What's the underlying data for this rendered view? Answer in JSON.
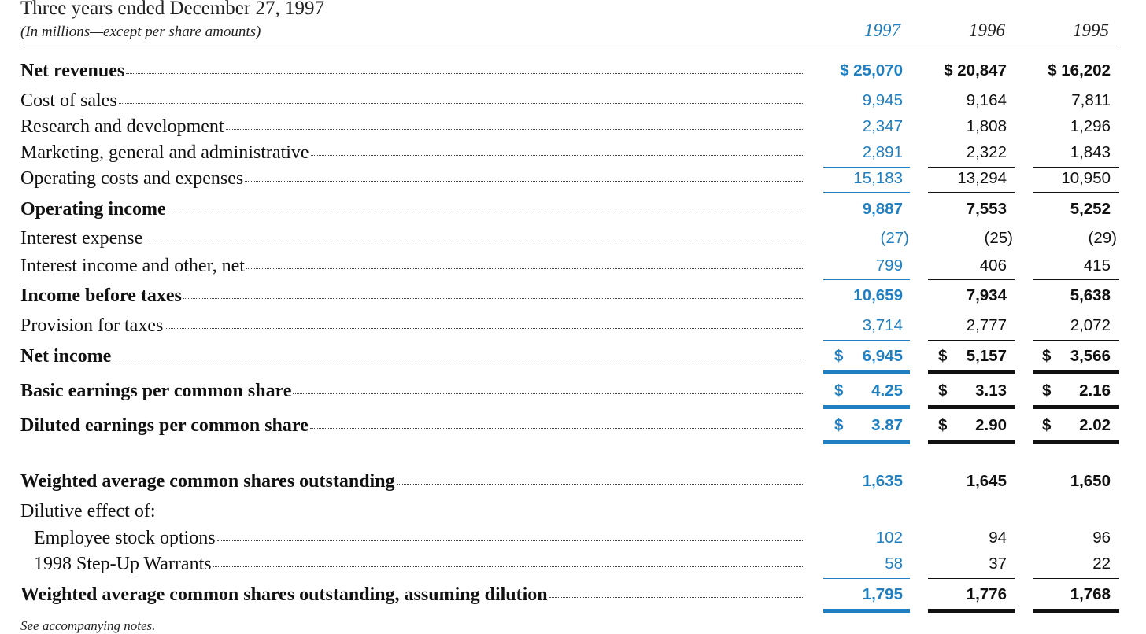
{
  "header": {
    "title": "Three years ended December 27, 1997",
    "subtitle": "(In millions—except per share amounts)",
    "years": [
      "1997",
      "1996",
      "1995"
    ]
  },
  "rows": [
    {
      "label": "Net revenues",
      "v": [
        "$ 25,070",
        "$ 20,847",
        "$ 16,202"
      ]
    },
    {
      "label": "Cost of sales",
      "v": [
        "9,945",
        "9,164",
        "7,811"
      ]
    },
    {
      "label": "Research and development",
      "v": [
        "2,347",
        "1,808",
        "1,296"
      ]
    },
    {
      "label": "Marketing, general and administrative",
      "v": [
        "2,891",
        "2,322",
        "1,843"
      ]
    },
    {
      "label": "Operating costs and expenses",
      "v": [
        "15,183",
        "13,294",
        "10,950"
      ]
    },
    {
      "label": "Operating income",
      "v": [
        "9,887",
        "7,553",
        "5,252"
      ]
    },
    {
      "label": "Interest expense",
      "v": [
        "(27)",
        "(25)",
        "(29)"
      ]
    },
    {
      "label": "Interest income and other, net",
      "v": [
        "799",
        "406",
        "415"
      ]
    },
    {
      "label": "Income before taxes",
      "v": [
        "10,659",
        "7,934",
        "5,638"
      ]
    },
    {
      "label": "Provision for taxes",
      "v": [
        "3,714",
        "2,777",
        "2,072"
      ]
    },
    {
      "label": "Net income",
      "cur": "$",
      "v": [
        "6,945",
        "5,157",
        "3,566"
      ]
    },
    {
      "label": "Basic earnings per common share",
      "cur": "$",
      "v": [
        "4.25",
        "3.13",
        "2.16"
      ]
    },
    {
      "label": "Diluted earnings per common share",
      "cur": "$",
      "v": [
        "3.87",
        "2.90",
        "2.02"
      ]
    },
    {
      "label": "Weighted average common shares outstanding",
      "v": [
        "1,635",
        "1,645",
        "1,650"
      ]
    },
    {
      "label": "Dilutive effect of:"
    },
    {
      "label": "Employee stock options",
      "v": [
        "102",
        "94",
        "96"
      ]
    },
    {
      "label": "1998 Step-Up Warrants",
      "v": [
        "58",
        "37",
        "22"
      ]
    },
    {
      "label": "Weighted average common shares outstanding, assuming dilution",
      "v": [
        "1,795",
        "1,776",
        "1,768"
      ]
    }
  ],
  "footer": "See accompanying notes.",
  "colors": {
    "accent": "#1f7fc1",
    "text": "#111111"
  }
}
